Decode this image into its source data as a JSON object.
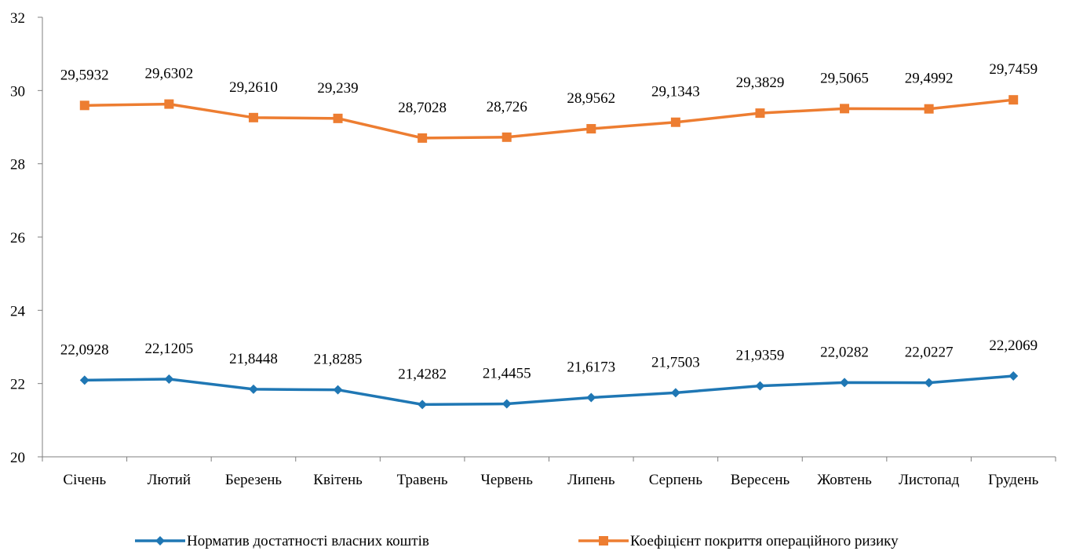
{
  "chart_data": {
    "type": "line",
    "categories": [
      "Січень",
      "Лютий",
      "Березень",
      "Квітень",
      "Травень",
      "Червень",
      "Липень",
      "Серпень",
      "Вересень",
      "Жовтень",
      "Листопад",
      "Грудень"
    ],
    "series": [
      {
        "name": "Норматив достатності власних коштів",
        "color": "#1f77b4",
        "marker": "diamond",
        "values": [
          22.0928,
          22.1205,
          21.8448,
          21.8285,
          21.4282,
          21.4455,
          21.6173,
          21.7503,
          21.9359,
          22.0282,
          22.0227,
          22.2069
        ],
        "labels": [
          "22,0928",
          "22,1205",
          "21,8448",
          "21,8285",
          "21,4282",
          "21,4455",
          "21,6173",
          "21,7503",
          "21,9359",
          "22,0282",
          "22,0227",
          "22,2069"
        ]
      },
      {
        "name": "Коефіцієнт покриття операційного ризику",
        "color": "#ed7d31",
        "marker": "square",
        "values": [
          29.5932,
          29.6302,
          29.261,
          29.239,
          28.7028,
          28.726,
          28.9562,
          29.1343,
          29.3829,
          29.5065,
          29.4992,
          29.7459
        ],
        "labels": [
          "29,5932",
          "29,6302",
          "29,2610",
          "29,239",
          "28,7028",
          "28,726",
          "28,9562",
          "29,1343",
          "29,3829",
          "29,5065",
          "29,4992",
          "29,7459"
        ]
      }
    ],
    "yticks": [
      "20",
      "22",
      "24",
      "26",
      "28",
      "30",
      "32"
    ],
    "ylim": [
      20,
      32
    ],
    "grid": false,
    "legend_position": "bottom"
  }
}
